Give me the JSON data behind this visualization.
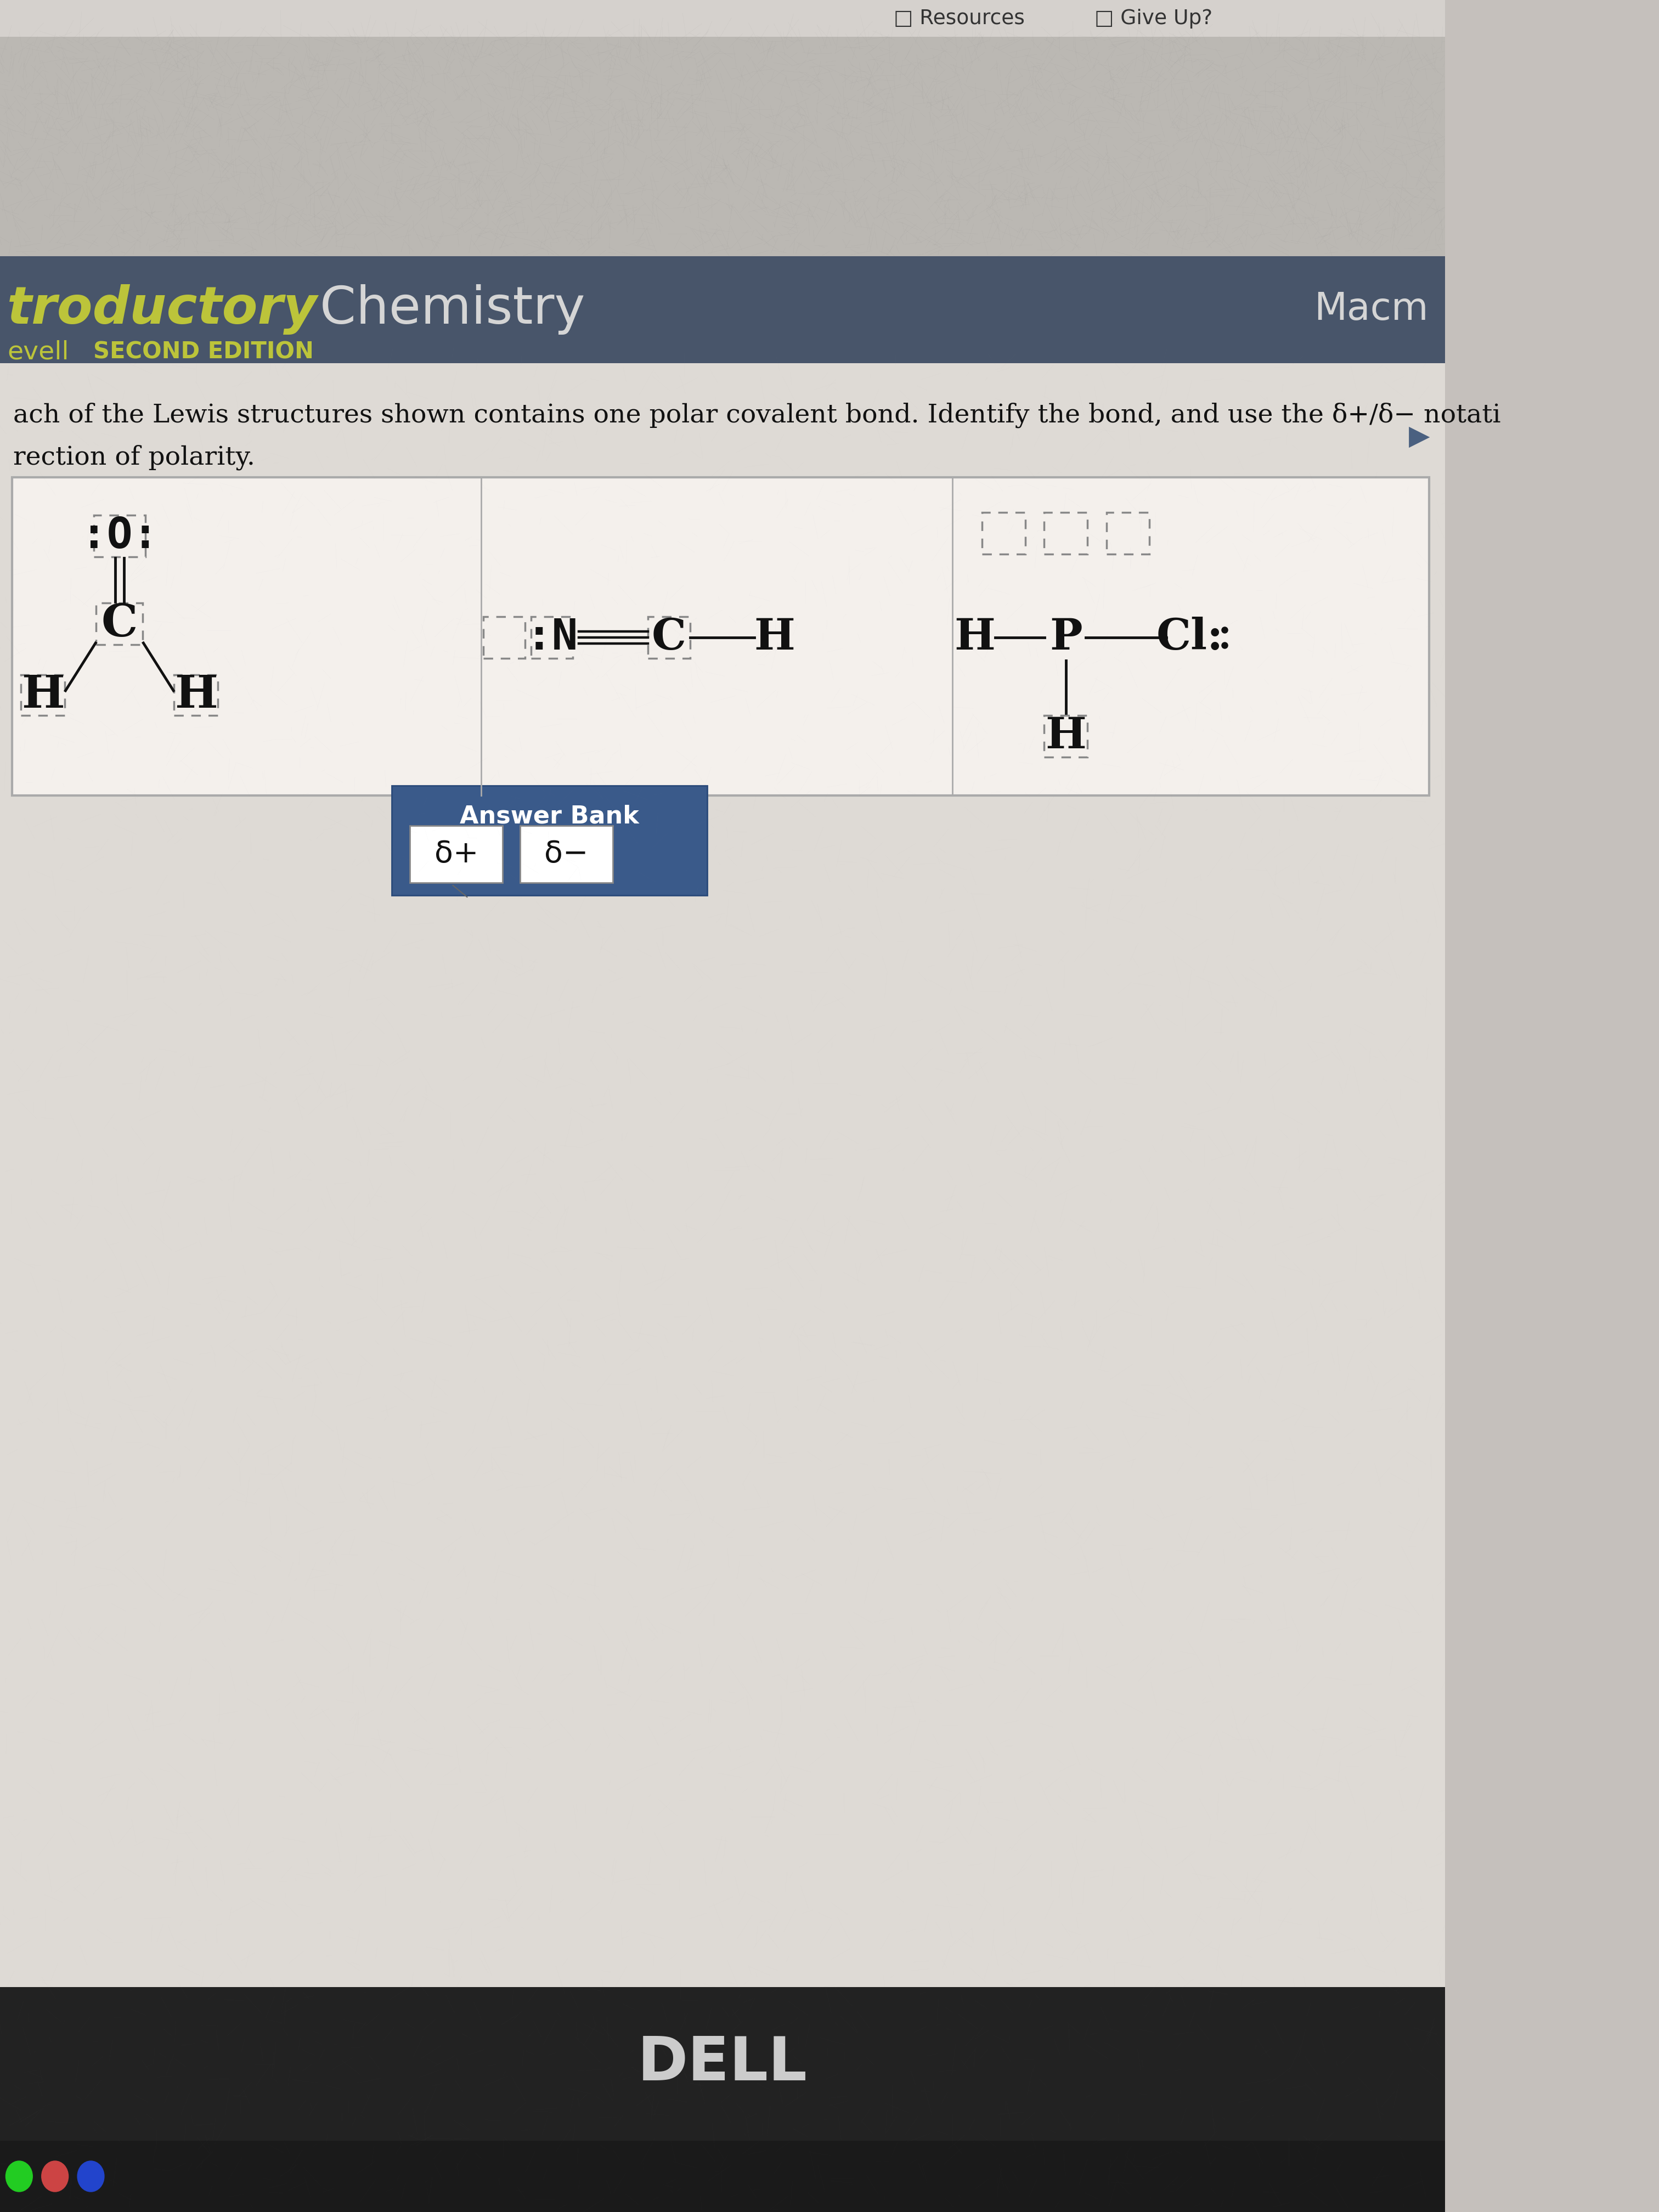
{
  "bg_fig": "#c5c0bc",
  "nav_color": "#d5d1cd",
  "top_texture_color": "#bbb8b3",
  "header_color": "#48556a",
  "main_color": "#dedad5",
  "title_intro_color": "#bcc43a",
  "title_chem_color": "#d5d5d5",
  "subtitle_color": "#bcc43a",
  "text_color": "#111111",
  "struct_box_color": "#f4f0ec",
  "answer_bank_color": "#3a5a8a",
  "bottom_bar_color": "#1a1a1a",
  "dell_bar_color": "#222222",
  "dell_text_color": "#cccccc",
  "resources_text": "Resources",
  "giveup_text": "Give Up?",
  "title_intro": "troductory",
  "title_chem": " Chemistry",
  "publisher": "Macm",
  "author": "evell",
  "edition": "SECOND EDITION",
  "question1": "ach of the Lewis structures shown contains one polar covalent bond. Identify the bond, and use the δ+/δ− notati",
  "question2": "rection of polarity.",
  "answer_bank_label": "Answer Bank",
  "delta_plus": "δ+",
  "delta_minus": "δ−",
  "dell_text": "DELL"
}
